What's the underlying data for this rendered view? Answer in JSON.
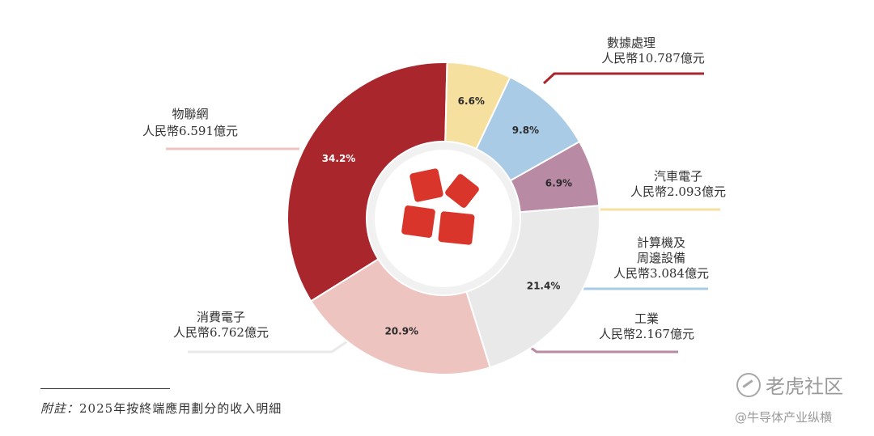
{
  "chart_data": {
    "type": "pie",
    "donut": true,
    "segments": [
      {
        "label": "數據處理",
        "value_label": "人民幣10.787億元",
        "value": 10.787,
        "percent": 34.2,
        "percent_label": "34.2%",
        "color": "#a8262c",
        "pct_color": "#ffffff"
      },
      {
        "label": "汽車電子",
        "value_label": "人民幣2.093億元",
        "value": 2.093,
        "percent": 6.6,
        "percent_label": "6.6%",
        "color": "#f6e0a0",
        "pct_color": "#2b2b2b"
      },
      {
        "label": "計算機及\n周邊設備",
        "value_label": "人民幣3.084億元",
        "value": 3.084,
        "percent": 9.8,
        "percent_label": "9.8%",
        "color": "#a9cbe6",
        "pct_color": "#2b2b2b"
      },
      {
        "label": "工業",
        "value_label": "人民幣2.167億元",
        "value": 2.167,
        "percent": 6.9,
        "percent_label": "6.9%",
        "color": "#b98aa4",
        "pct_color": "#2b2b2b"
      },
      {
        "label": "消費電子",
        "value_label": "人民幣6.762億元",
        "value": 6.762,
        "percent": 21.4,
        "percent_label": "21.4%",
        "color": "#e9e9ea",
        "pct_color": "#2b2b2b"
      },
      {
        "label": "物聯網",
        "value_label": "人民幣6.591億元",
        "value": 6.591,
        "percent": 20.9,
        "percent_label": "20.9%",
        "color": "#edc4c0",
        "pct_color": "#2b2b2b"
      }
    ]
  },
  "footnote": {
    "lead": "附註：",
    "text": "2025年按終端應用劃分的收入明細"
  },
  "watermarks": {
    "brand": "老虎社区",
    "handle": "@牛导体产业纵横"
  }
}
